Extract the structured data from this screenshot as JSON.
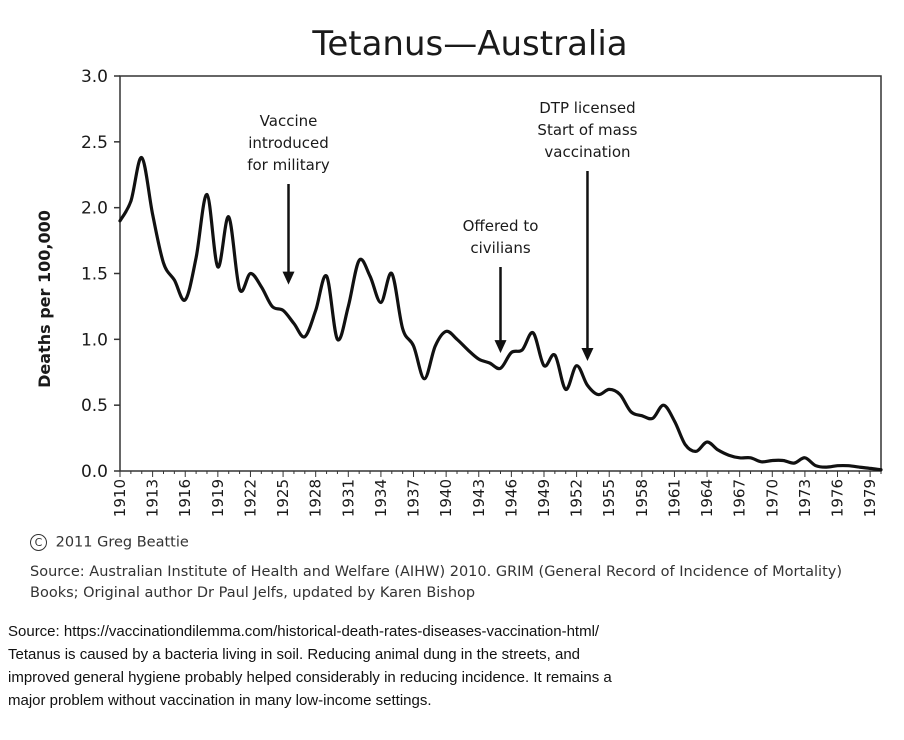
{
  "chart_data": {
    "type": "line",
    "title": "Tetanus—Australia",
    "xlabel": "",
    "ylabel": "Deaths per 100,000",
    "xlim": [
      1910,
      1980
    ],
    "ylim": [
      0,
      3.0
    ],
    "grid": false,
    "yticks": [
      "0.0",
      "0.5",
      "1.0",
      "1.5",
      "2.0",
      "2.5",
      "3.0"
    ],
    "xticks": [
      "1910",
      "1913",
      "1916",
      "1919",
      "1922",
      "1925",
      "1928",
      "1931",
      "1934",
      "1937",
      "1940",
      "1943",
      "1946",
      "1949",
      "1952",
      "1955",
      "1958",
      "1961",
      "1964",
      "1967",
      "1970",
      "1973",
      "1976",
      "1979"
    ],
    "series": [
      {
        "name": "Tetanus deaths per 100,000",
        "x": [
          1910,
          1911,
          1912,
          1913,
          1914,
          1915,
          1916,
          1917,
          1918,
          1919,
          1920,
          1921,
          1922,
          1923,
          1924,
          1925,
          1926,
          1927,
          1928,
          1929,
          1930,
          1931,
          1932,
          1933,
          1934,
          1935,
          1936,
          1937,
          1938,
          1939,
          1940,
          1941,
          1942,
          1943,
          1944,
          1945,
          1946,
          1947,
          1948,
          1949,
          1950,
          1951,
          1952,
          1953,
          1954,
          1955,
          1956,
          1957,
          1958,
          1959,
          1960,
          1961,
          1962,
          1963,
          1964,
          1965,
          1966,
          1967,
          1968,
          1969,
          1970,
          1971,
          1972,
          1973,
          1974,
          1975,
          1976,
          1977,
          1978,
          1979,
          1980
        ],
        "values": [
          1.9,
          2.05,
          2.38,
          1.95,
          1.58,
          1.45,
          1.3,
          1.62,
          2.1,
          1.55,
          1.93,
          1.38,
          1.5,
          1.4,
          1.25,
          1.22,
          1.12,
          1.02,
          1.22,
          1.48,
          1.0,
          1.25,
          1.6,
          1.48,
          1.28,
          1.5,
          1.08,
          0.95,
          0.7,
          0.95,
          1.06,
          1.0,
          0.92,
          0.85,
          0.82,
          0.78,
          0.9,
          0.92,
          1.05,
          0.8,
          0.88,
          0.62,
          0.8,
          0.65,
          0.58,
          0.62,
          0.58,
          0.45,
          0.42,
          0.4,
          0.5,
          0.38,
          0.2,
          0.15,
          0.22,
          0.16,
          0.12,
          0.1,
          0.1,
          0.07,
          0.08,
          0.08,
          0.06,
          0.1,
          0.04,
          0.03,
          0.04,
          0.04,
          0.03,
          0.02,
          0.01
        ]
      }
    ],
    "annotations": [
      {
        "lines": [
          "Vaccine",
          "introduced",
          "for military"
        ],
        "x": 1925.5,
        "y": 1.4
      },
      {
        "lines": [
          "Offered to",
          "civilians"
        ],
        "x": 1945,
        "y": 0.88
      },
      {
        "lines": [
          "DTP licensed",
          "Start of mass",
          "vaccination"
        ],
        "x": 1953,
        "y": 0.82
      }
    ]
  },
  "copyright": {
    "symbol": "C",
    "text": "2011 Greg Beattie"
  },
  "chart_source": "Source: Australian Institute of Health and Welfare (AIHW) 2010. GRIM (General Record of Incidence of Mortality) Books; Original author Dr Paul Jelfs, updated by Karen Bishop",
  "caption": {
    "lines": [
      "Source: https://vaccinationdilemma.com/historical-death-rates-diseases-vaccination-html/",
      "Tetanus is caused by a bacteria living in soil. Reducing animal dung in the streets, and",
      "improved general hygiene probably helped considerably in reducing incidence. It remains a",
      "major problem without vaccination in many low-income settings."
    ]
  }
}
